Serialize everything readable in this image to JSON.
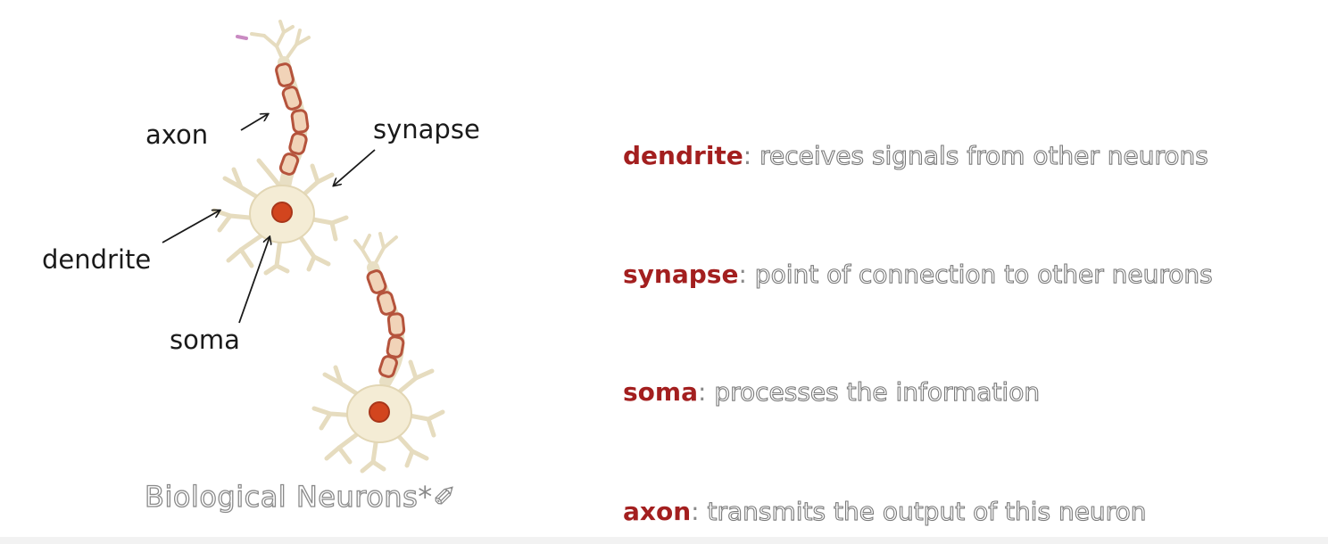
{
  "labels": {
    "axon": "axon",
    "synapse": "synapse",
    "dendrite": "dendrite",
    "soma": "soma"
  },
  "caption": {
    "text": "Biological Neurons",
    "mark": "*✐"
  },
  "definitions": [
    {
      "term": "dendrite",
      "separator": ":",
      "text": " receives signals from other neurons"
    },
    {
      "term": "synapse",
      "separator": ":",
      "text": " point of connection to other neurons"
    },
    {
      "term": "soma",
      "separator": ":",
      "text": " processes the information"
    },
    {
      "term": "axon",
      "separator": ":",
      "text": " transmits the output of this neuron"
    }
  ],
  "colors": {
    "term": "#a31f1f",
    "myelin": "#b5533c",
    "nucleus": "#d2451e",
    "cell_body": "#f4ecd5"
  }
}
